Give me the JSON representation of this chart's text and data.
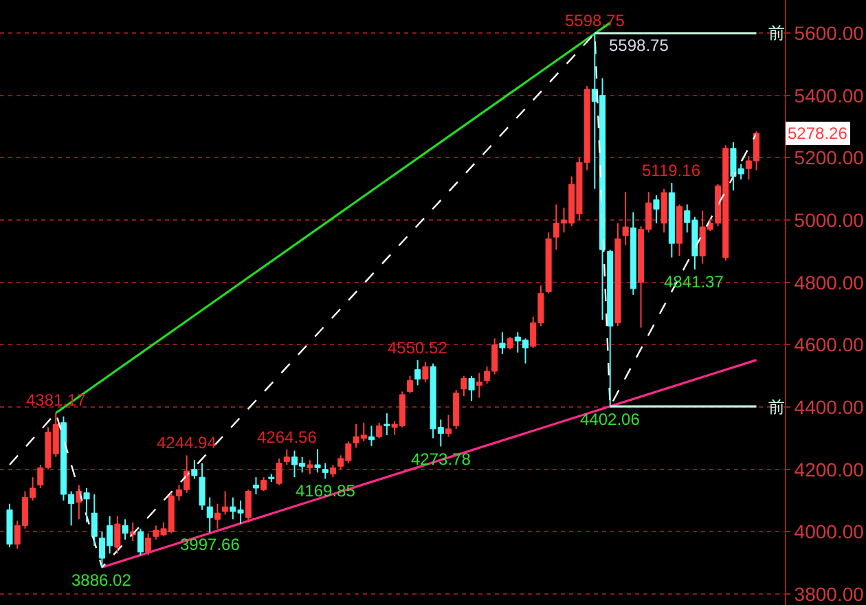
{
  "chart_data": {
    "type": "candlestick",
    "categories": [
      null,
      null,
      null,
      null,
      null,
      null,
      null,
      null,
      null,
      null,
      null,
      null,
      null,
      null,
      null,
      null,
      null,
      null,
      null,
      null,
      null,
      null,
      null,
      null,
      null,
      null,
      null,
      null,
      null,
      null,
      null,
      null,
      null,
      null,
      null,
      null,
      null,
      null,
      null,
      null,
      null,
      null,
      null,
      null,
      null,
      null,
      null,
      null,
      null,
      null,
      null,
      null,
      null,
      null,
      null,
      null,
      null,
      null,
      null,
      null,
      null,
      null,
      null,
      null,
      null,
      null,
      null,
      null,
      null,
      null,
      null,
      null,
      null,
      null,
      null,
      null,
      null,
      null,
      null,
      null,
      null,
      null,
      null,
      null,
      null,
      null,
      null,
      null,
      null,
      null,
      null,
      null,
      null,
      null,
      null,
      null,
      null,
      null
    ],
    "ohlc": [
      [
        4070,
        4090,
        3950,
        3960
      ],
      [
        3960,
        4035,
        3945,
        4020
      ],
      [
        4020,
        4130,
        4010,
        4110
      ],
      [
        4110,
        4175,
        4100,
        4140
      ],
      [
        4150,
        4215,
        4140,
        4205
      ],
      [
        4206,
        4335,
        4200,
        4320
      ],
      [
        4250,
        4381.17,
        4240,
        4345
      ],
      [
        4350,
        4370,
        4100,
        4120
      ],
      [
        4120,
        4130,
        4020,
        4090
      ],
      [
        4095,
        4150,
        4040,
        4130
      ],
      [
        4125,
        4140,
        4030,
        4105
      ],
      [
        4060,
        4120,
        3955,
        3985
      ],
      [
        3980,
        4000,
        3886.02,
        3915
      ],
      [
        4020,
        4050,
        3930,
        3955
      ],
      [
        3950,
        4050,
        3930,
        4025
      ],
      [
        4020,
        4040,
        3975,
        3995
      ],
      [
        3990,
        4030,
        3970,
        4000
      ],
      [
        4000,
        4010,
        3925,
        3935
      ],
      [
        3935,
        3995,
        3925,
        3980
      ],
      [
        3985,
        4020,
        3975,
        4005
      ],
      [
        3990,
        4030,
        3985,
        4010
      ],
      [
        4000,
        4125,
        3995,
        4115
      ],
      [
        4115,
        4150,
        4100,
        4135
      ],
      [
        4135,
        4244.94,
        4125,
        4195
      ],
      [
        4200,
        4230,
        4170,
        4180
      ],
      [
        4175,
        4220,
        4070,
        4085
      ],
      [
        4080,
        4110,
        3997.66,
        4045
      ],
      [
        4040,
        4090,
        4010,
        4060
      ],
      [
        4065,
        4130,
        4055,
        4080
      ],
      [
        4080,
        4110,
        4040,
        4065
      ],
      [
        4070,
        4100,
        4025,
        4060
      ],
      [
        4045,
        4135,
        4030,
        4130
      ],
      [
        4150,
        4175,
        4120,
        4140
      ],
      [
        4135,
        4175,
        4130,
        4165
      ],
      [
        4175,
        4185,
        4160,
        4170
      ],
      [
        4155,
        4235,
        4150,
        4220
      ],
      [
        4225,
        4264.56,
        4215,
        4240
      ],
      [
        4240,
        4260,
        4175,
        4215
      ],
      [
        4220,
        4240,
        4190,
        4210
      ],
      [
        4205,
        4230,
        4185,
        4215
      ],
      [
        4215,
        4265,
        4190,
        4205
      ],
      [
        4200,
        4220,
        4169.85,
        4190
      ],
      [
        4185,
        4215,
        4175,
        4205
      ],
      [
        4210,
        4245,
        4200,
        4235
      ],
      [
        4228,
        4290,
        4220,
        4282
      ],
      [
        4285,
        4345,
        4270,
        4305
      ],
      [
        4300,
        4350,
        4290,
        4310
      ],
      [
        4305,
        4340,
        4275,
        4295
      ],
      [
        4305,
        4350,
        4300,
        4340
      ],
      [
        4345,
        4380,
        4310,
        4340
      ],
      [
        4335,
        4355,
        4310,
        4345
      ],
      [
        4340,
        4450,
        4335,
        4440
      ],
      [
        4450,
        4500,
        4445,
        4485
      ],
      [
        4520,
        4550.52,
        4470,
        4490
      ],
      [
        4490,
        4545,
        4480,
        4530
      ],
      [
        4530,
        4540,
        4300,
        4330
      ],
      [
        4335,
        4360,
        4273.78,
        4315
      ],
      [
        4315,
        4375,
        4305,
        4330
      ],
      [
        4340,
        4455,
        4330,
        4445
      ],
      [
        4458,
        4500,
        4435,
        4492
      ],
      [
        4492,
        4500,
        4420,
        4455
      ],
      [
        4470,
        4510,
        4430,
        4480
      ],
      [
        4485,
        4530,
        4475,
        4515
      ],
      [
        4515,
        4620,
        4505,
        4600
      ],
      [
        4605,
        4640,
        4570,
        4590
      ],
      [
        4590,
        4625,
        4585,
        4620
      ],
      [
        4625,
        4640,
        4575,
        4612
      ],
      [
        4615,
        4620,
        4540,
        4590
      ],
      [
        4595,
        4690,
        4590,
        4670
      ],
      [
        4670,
        4790,
        4660,
        4765
      ],
      [
        4770,
        4960,
        4765,
        4940
      ],
      [
        4945,
        5050,
        4905,
        4990
      ],
      [
        4990,
        5040,
        4960,
        5000
      ],
      [
        4990,
        5140,
        4980,
        5115
      ],
      [
        5020,
        5200,
        5000,
        5185
      ],
      [
        5185,
        5430,
        5160,
        5420
      ],
      [
        5420,
        5598.75,
        5100,
        5380
      ],
      [
        5400,
        5455,
        4680,
        4905
      ],
      [
        4900,
        4905,
        4402.06,
        4660
      ],
      [
        4670,
        4990,
        4660,
        4940
      ],
      [
        4950,
        5090,
        4920,
        4978
      ],
      [
        4975,
        5025,
        4760,
        4780
      ],
      [
        4800,
        4980,
        4655,
        4970
      ],
      [
        4970,
        5090,
        4960,
        5055
      ],
      [
        5065,
        5080,
        4990,
        5035
      ],
      [
        4990,
        5100,
        4960,
        5088
      ],
      [
        5088,
        5119.16,
        4880,
        4925
      ],
      [
        4925,
        5050,
        4885,
        5044
      ],
      [
        5030,
        5050,
        4960,
        4992
      ],
      [
        5000,
        5010,
        4841.37,
        4885
      ],
      [
        4885,
        5030,
        4860,
        4978
      ],
      [
        4970,
        5005,
        4965,
        4990
      ],
      [
        4990,
        5115,
        4980,
        5110
      ],
      [
        4880,
        5240,
        4870,
        5230
      ],
      [
        5230,
        5250,
        5095,
        5140
      ],
      [
        5165,
        5180,
        5130,
        5148
      ],
      [
        5165,
        5205,
        5130,
        5190
      ],
      [
        5190,
        5285,
        5160,
        5278.26
      ]
    ],
    "series": [
      {
        "type": "line",
        "color": "#22dd22",
        "line_style": "solid",
        "values": [
          null,
          null,
          null,
          null,
          null,
          null,
          4381,
          null,
          null,
          null,
          null,
          null,
          null,
          null,
          null,
          null,
          null,
          null,
          null,
          null,
          null,
          null,
          null,
          null,
          null,
          null,
          null,
          null,
          null,
          null,
          null,
          null,
          null,
          null,
          null,
          null,
          null,
          null,
          null,
          null,
          null,
          null,
          null,
          null,
          null,
          null,
          null,
          null,
          null,
          null,
          null,
          null,
          null,
          null,
          null,
          null,
          null,
          null,
          null,
          null,
          null,
          null,
          null,
          null,
          null,
          null,
          null,
          null,
          null,
          null,
          null,
          null,
          null,
          null,
          null,
          null,
          null,
          null,
          5633,
          null,
          null,
          null,
          null,
          null,
          null,
          null,
          null,
          null,
          null,
          null,
          null,
          null,
          null,
          null,
          null,
          null,
          null,
          null
        ]
      },
      {
        "type": "line",
        "color": "#ff2a8a",
        "line_style": "solid",
        "values": [
          null,
          null,
          null,
          null,
          null,
          null,
          null,
          null,
          null,
          null,
          null,
          null,
          3886,
          null,
          null,
          null,
          null,
          null,
          null,
          null,
          null,
          null,
          null,
          null,
          null,
          null,
          null,
          null,
          null,
          null,
          null,
          null,
          null,
          null,
          null,
          null,
          null,
          null,
          null,
          null,
          null,
          null,
          null,
          null,
          null,
          null,
          null,
          null,
          null,
          null,
          null,
          null,
          null,
          null,
          null,
          null,
          null,
          null,
          null,
          null,
          null,
          null,
          null,
          null,
          null,
          null,
          null,
          null,
          null,
          null,
          null,
          null,
          null,
          null,
          null,
          null,
          null,
          null,
          null,
          null,
          null,
          null,
          null,
          null,
          null,
          null,
          null,
          null,
          null,
          null,
          null,
          null,
          null,
          null,
          null,
          null,
          null,
          4551
        ]
      },
      {
        "type": "line",
        "color": "#ffffff",
        "line_style": "dashed",
        "values": [
          4215,
          null,
          null,
          null,
          null,
          null,
          4381,
          null,
          null,
          null,
          null,
          null,
          3886,
          null,
          null,
          null,
          null,
          null,
          null,
          null,
          null,
          null,
          null,
          null,
          null,
          null,
          null,
          null,
          null,
          null,
          null,
          null,
          null,
          null,
          null,
          null,
          null,
          null,
          null,
          null,
          null,
          null,
          null,
          null,
          null,
          null,
          null,
          null,
          null,
          null,
          null,
          null,
          null,
          null,
          null,
          null,
          null,
          null,
          null,
          null,
          null,
          null,
          null,
          null,
          null,
          null,
          null,
          null,
          null,
          null,
          null,
          null,
          null,
          null,
          null,
          null,
          5599,
          null,
          4402,
          null,
          null,
          null,
          null,
          null,
          null,
          null,
          null,
          null,
          null,
          null,
          null,
          null,
          null,
          null,
          null,
          null,
          null,
          5278
        ]
      },
      {
        "type": "line",
        "color": "#c8f0e0",
        "line_style": "solid",
        "values": [
          null,
          null,
          null,
          null,
          null,
          null,
          null,
          null,
          null,
          null,
          null,
          null,
          null,
          null,
          null,
          null,
          null,
          null,
          null,
          null,
          null,
          null,
          null,
          null,
          null,
          null,
          null,
          null,
          null,
          null,
          null,
          null,
          null,
          null,
          null,
          null,
          null,
          null,
          null,
          null,
          null,
          null,
          null,
          null,
          null,
          null,
          null,
          null,
          null,
          null,
          null,
          null,
          null,
          null,
          null,
          null,
          null,
          null,
          null,
          null,
          null,
          null,
          null,
          null,
          null,
          null,
          null,
          null,
          null,
          null,
          null,
          null,
          null,
          null,
          null,
          null,
          5599,
          null,
          null,
          null,
          null,
          null,
          null,
          null,
          null,
          null,
          null,
          null,
          null,
          null,
          null,
          null,
          null,
          null,
          null,
          null,
          null,
          5599
        ]
      },
      {
        "type": "line",
        "color": "#c8f0e0",
        "line_style": "solid",
        "values": [
          null,
          null,
          null,
          null,
          null,
          null,
          null,
          null,
          null,
          null,
          null,
          null,
          null,
          null,
          null,
          null,
          null,
          null,
          null,
          null,
          null,
          null,
          null,
          null,
          null,
          null,
          null,
          null,
          null,
          null,
          null,
          null,
          null,
          null,
          null,
          null,
          null,
          null,
          null,
          null,
          null,
          null,
          null,
          null,
          null,
          null,
          null,
          null,
          null,
          null,
          null,
          null,
          null,
          null,
          null,
          null,
          null,
          null,
          null,
          null,
          null,
          null,
          null,
          null,
          null,
          null,
          null,
          null,
          null,
          null,
          null,
          null,
          null,
          null,
          null,
          null,
          null,
          null,
          4402,
          null,
          null,
          null,
          null,
          null,
          null,
          null,
          null,
          null,
          null,
          null,
          null,
          null,
          null,
          null,
          null,
          null,
          null,
          4402
        ]
      }
    ],
    "annotations": [
      {
        "text": "4381.17",
        "y": 4381.17
      },
      {
        "text": "3886.02",
        "y": 3886.02
      },
      {
        "text": "4244.94",
        "y": 4244.94
      },
      {
        "text": "3997.66",
        "y": 3997.66
      },
      {
        "text": "4264.56",
        "y": 4264.56
      },
      {
        "text": "4169.85",
        "y": 4169.85
      },
      {
        "text": "4550.52",
        "y": 4550.52
      },
      {
        "text": "4273.78",
        "y": 4273.78
      },
      {
        "text": "5598.75",
        "y": 5598.75
      },
      {
        "text": "4402.06",
        "y": 4402.06
      },
      {
        "text": "5119.16",
        "y": 5119.16
      },
      {
        "text": "4841.37",
        "y": 4841.37
      },
      {
        "text": "5598.75",
        "y": 5598.75
      },
      "前",
      "前",
      "5278.26"
    ],
    "ylim": [
      3765,
      5706
    ],
    "yticks": [
      {
        "value": 3800,
        "label": "3800.00"
      },
      {
        "value": 4000,
        "label": "4000.00"
      },
      {
        "value": 4200,
        "label": "4200.00"
      },
      {
        "value": 4400,
        "label": "4400.00"
      },
      {
        "value": 4600,
        "label": "4600.00"
      },
      {
        "value": 4800,
        "label": "4800.00"
      },
      {
        "value": 5000,
        "label": "5000.00"
      },
      {
        "value": 5200,
        "label": "5200.00"
      },
      {
        "value": 5400,
        "label": "5400.00"
      },
      {
        "value": 5600,
        "label": "5600.00"
      }
    ],
    "tick_labels": "y",
    "grid": "y"
  }
}
